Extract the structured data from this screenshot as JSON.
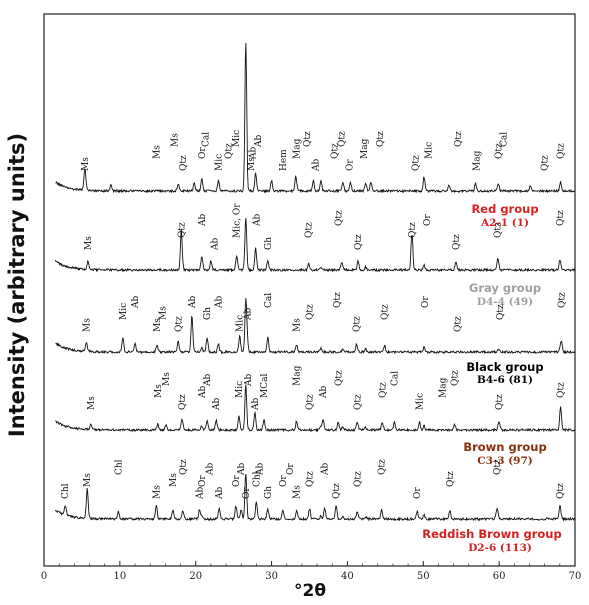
{
  "chart_data": {
    "type": "line",
    "title": "",
    "xlabel": "°2θ",
    "ylabel": "Intensity (arbitrary units)",
    "xlim": [
      0,
      70
    ],
    "xticks": [
      "0",
      "10",
      "20",
      "30",
      "40",
      "50",
      "60",
      "70"
    ],
    "grid": false,
    "series": [
      {
        "name": "Red group",
        "sample": "A2-1 (1)",
        "color": "#e02020",
        "peak_labels": [
          {
            "x": 5.4,
            "label": "Ms"
          },
          {
            "x": 14.8,
            "label": "Ms"
          },
          {
            "x": 17.2,
            "label": "Ms"
          },
          {
            "x": 18.3,
            "label": "Qtz"
          },
          {
            "x": 20.8,
            "label": "Or"
          },
          {
            "x": 21.3,
            "label": "Cal"
          },
          {
            "x": 23.0,
            "label": "Mic"
          },
          {
            "x": 24.3,
            "label": "Qtz"
          },
          {
            "x": 25.3,
            "label": "Mic"
          },
          {
            "x": 27.3,
            "label": "Ms"
          },
          {
            "x": 27.5,
            "label": "Ab"
          },
          {
            "x": 28.2,
            "label": "Ab"
          },
          {
            "x": 31.5,
            "label": "Hem"
          },
          {
            "x": 33.3,
            "label": "Mag"
          },
          {
            "x": 34.7,
            "label": "Qtz"
          },
          {
            "x": 35.8,
            "label": "Ab"
          },
          {
            "x": 38.3,
            "label": "Qtz"
          },
          {
            "x": 39.2,
            "label": "Qtz"
          },
          {
            "x": 40.3,
            "label": "Or"
          },
          {
            "x": 42.2,
            "label": "Mag"
          },
          {
            "x": 44.3,
            "label": "Qtz"
          },
          {
            "x": 49.0,
            "label": "Qtz"
          },
          {
            "x": 50.7,
            "label": "Mic"
          },
          {
            "x": 54.6,
            "label": "Qtz"
          },
          {
            "x": 57.0,
            "label": "Mag"
          },
          {
            "x": 59.9,
            "label": "Qtz"
          },
          {
            "x": 60.6,
            "label": "Cal"
          },
          {
            "x": 66.0,
            "label": "Qtz"
          },
          {
            "x": 68.1,
            "label": "Qtz"
          }
        ]
      },
      {
        "name": "Gray group",
        "sample": "D4-4 (49)",
        "color": "#a0a0a0",
        "peak_labels": [
          {
            "x": 5.8,
            "label": "Ms"
          },
          {
            "x": 18.1,
            "label": "Qtz"
          },
          {
            "x": 20.8,
            "label": "Ab"
          },
          {
            "x": 22.5,
            "label": "Ab"
          },
          {
            "x": 25.4,
            "label": "Mic, Or"
          },
          {
            "x": 28.0,
            "label": "Ab"
          },
          {
            "x": 29.5,
            "label": "Gh"
          },
          {
            "x": 34.9,
            "label": "Qtz"
          },
          {
            "x": 38.8,
            "label": "Qtz"
          },
          {
            "x": 41.4,
            "label": "Qtz"
          },
          {
            "x": 48.5,
            "label": "Qtz"
          },
          {
            "x": 50.5,
            "label": "Or"
          },
          {
            "x": 54.3,
            "label": "Qtz"
          },
          {
            "x": 59.8,
            "label": "Qtz"
          },
          {
            "x": 68.0,
            "label": "Qtz"
          }
        ]
      },
      {
        "name": "Black group",
        "sample": "B4-6 (81)",
        "color": "#000000",
        "peak_labels": [
          {
            "x": 5.6,
            "label": "Ms"
          },
          {
            "x": 10.4,
            "label": "Mic"
          },
          {
            "x": 12.0,
            "label": "Ab"
          },
          {
            "x": 14.9,
            "label": "Ms"
          },
          {
            "x": 15.6,
            "label": "Ms"
          },
          {
            "x": 19.5,
            "label": "Ab"
          },
          {
            "x": 17.7,
            "label": "Qtz"
          },
          {
            "x": 21.5,
            "label": "Gh"
          },
          {
            "x": 23.0,
            "label": "Ab"
          },
          {
            "x": 25.8,
            "label": "Mic"
          },
          {
            "x": 26.8,
            "label": "Ab"
          },
          {
            "x": 29.5,
            "label": "Cal"
          },
          {
            "x": 33.3,
            "label": "Ms"
          },
          {
            "x": 35.0,
            "label": "Qtz"
          },
          {
            "x": 38.6,
            "label": "Qtz"
          },
          {
            "x": 41.2,
            "label": "Qtz"
          },
          {
            "x": 44.9,
            "label": "Qtz"
          },
          {
            "x": 50.2,
            "label": "Or"
          },
          {
            "x": 54.5,
            "label": "Qtz"
          },
          {
            "x": 60.1,
            "label": "Qtz"
          },
          {
            "x": 68.2,
            "label": "Qtz"
          }
        ]
      },
      {
        "name": "Brown group",
        "sample": "C3-3 (97)",
        "color": "#8b2e0f",
        "peak_labels": [
          {
            "x": 6.2,
            "label": "Ms"
          },
          {
            "x": 15.0,
            "label": "Ms"
          },
          {
            "x": 16.1,
            "label": "Ms"
          },
          {
            "x": 18.2,
            "label": "Qtz"
          },
          {
            "x": 20.8,
            "label": "Ab"
          },
          {
            "x": 21.5,
            "label": "Ab"
          },
          {
            "x": 22.7,
            "label": "Ab"
          },
          {
            "x": 25.7,
            "label": "Mic"
          },
          {
            "x": 26.9,
            "label": "Ab"
          },
          {
            "x": 27.8,
            "label": "Ab"
          },
          {
            "x": 29.0,
            "label": "MCal"
          },
          {
            "x": 33.3,
            "label": "Mag"
          },
          {
            "x": 35.0,
            "label": "Qtz"
          },
          {
            "x": 36.8,
            "label": "Ab"
          },
          {
            "x": 38.8,
            "label": "Qtz"
          },
          {
            "x": 41.3,
            "label": "Qtz"
          },
          {
            "x": 44.6,
            "label": "Qtz"
          },
          {
            "x": 46.2,
            "label": "Cal"
          },
          {
            "x": 49.5,
            "label": "Mic"
          },
          {
            "x": 52.5,
            "label": "Mag"
          },
          {
            "x": 54.1,
            "label": "Qtz"
          },
          {
            "x": 60.0,
            "label": "Qtz"
          },
          {
            "x": 68.1,
            "label": "Qtz"
          }
        ]
      },
      {
        "name": "Reddish Brown group",
        "sample": "D2-6 (113)",
        "color": "#d42020",
        "peak_labels": [
          {
            "x": 2.8,
            "label": "Chl"
          },
          {
            "x": 5.7,
            "label": "Ms"
          },
          {
            "x": 9.8,
            "label": "Chl"
          },
          {
            "x": 14.8,
            "label": "Ms"
          },
          {
            "x": 17.0,
            "label": "Ms"
          },
          {
            "x": 18.3,
            "label": "Qtz"
          },
          {
            "x": 20.5,
            "label": "Ab"
          },
          {
            "x": 20.8,
            "label": "Or"
          },
          {
            "x": 21.8,
            "label": "Ab"
          },
          {
            "x": 23.1,
            "label": "Ab"
          },
          {
            "x": 25.3,
            "label": "Or"
          },
          {
            "x": 26.0,
            "label": "Ab"
          },
          {
            "x": 26.6,
            "label": "Or"
          },
          {
            "x": 28.0,
            "label": "Chl"
          },
          {
            "x": 28.4,
            "label": "Ab"
          },
          {
            "x": 29.5,
            "label": "Gh"
          },
          {
            "x": 31.5,
            "label": "Or"
          },
          {
            "x": 32.4,
            "label": "Or"
          },
          {
            "x": 33.3,
            "label": "Ms"
          },
          {
            "x": 35.0,
            "label": "Qtz"
          },
          {
            "x": 37.0,
            "label": "Ab"
          },
          {
            "x": 38.5,
            "label": "Qtz"
          },
          {
            "x": 41.3,
            "label": "Qtz"
          },
          {
            "x": 44.5,
            "label": "Qtz"
          },
          {
            "x": 49.2,
            "label": "Or"
          },
          {
            "x": 53.5,
            "label": "Qtz"
          },
          {
            "x": 59.7,
            "label": "Qtz"
          },
          {
            "x": 68.0,
            "label": "Qtz"
          }
        ]
      }
    ]
  }
}
